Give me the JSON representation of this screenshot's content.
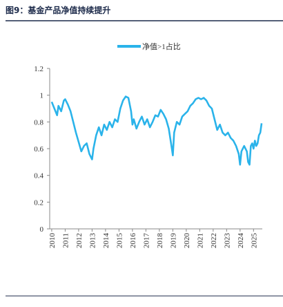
{
  "chart_data": {
    "type": "line",
    "title": "图9：基金产品净值持续提升",
    "x": [
      2010.0,
      2010.2,
      2010.4,
      2010.5,
      2010.7,
      2010.9,
      2011.0,
      2011.2,
      2011.4,
      2011.6,
      2011.8,
      2012.0,
      2012.2,
      2012.4,
      2012.6,
      2012.8,
      2013.0,
      2013.1,
      2013.3,
      2013.5,
      2013.7,
      2013.9,
      2014.1,
      2014.3,
      2014.5,
      2014.7,
      2014.9,
      2015.1,
      2015.3,
      2015.5,
      2015.7,
      2015.9,
      2016.0,
      2016.1,
      2016.3,
      2016.5,
      2016.7,
      2016.9,
      2017.1,
      2017.3,
      2017.5,
      2017.7,
      2017.9,
      2018.1,
      2018.3,
      2018.5,
      2018.7,
      2018.9,
      2019.0,
      2019.1,
      2019.3,
      2019.5,
      2019.7,
      2019.9,
      2020.1,
      2020.3,
      2020.5,
      2020.7,
      2020.9,
      2021.1,
      2021.3,
      2021.5,
      2021.7,
      2021.9,
      2022.1,
      2022.3,
      2022.5,
      2022.7,
      2022.9,
      2023.1,
      2023.3,
      2023.5,
      2023.7,
      2023.9,
      2024.0,
      2024.1,
      2024.3,
      2024.5,
      2024.6,
      2024.7,
      2024.8,
      2024.9,
      2025.0,
      2025.1,
      2025.2,
      2025.3,
      2025.4,
      2025.5,
      2025.6
    ],
    "series": [
      {
        "name": "净值>1占比",
        "color": "#2ab3ea",
        "values": [
          0.95,
          0.9,
          0.85,
          0.92,
          0.88,
          0.96,
          0.97,
          0.93,
          0.88,
          0.8,
          0.72,
          0.65,
          0.58,
          0.62,
          0.64,
          0.56,
          0.52,
          0.6,
          0.7,
          0.76,
          0.7,
          0.78,
          0.74,
          0.8,
          0.76,
          0.82,
          0.8,
          0.9,
          0.96,
          0.99,
          0.98,
          0.88,
          0.78,
          0.82,
          0.75,
          0.8,
          0.84,
          0.78,
          0.82,
          0.76,
          0.8,
          0.85,
          0.84,
          0.89,
          0.86,
          0.82,
          0.75,
          0.62,
          0.55,
          0.72,
          0.8,
          0.78,
          0.84,
          0.86,
          0.88,
          0.92,
          0.94,
          0.97,
          0.98,
          0.97,
          0.98,
          0.96,
          0.92,
          0.9,
          0.82,
          0.74,
          0.78,
          0.72,
          0.7,
          0.72,
          0.68,
          0.66,
          0.62,
          0.56,
          0.48,
          0.58,
          0.62,
          0.58,
          0.5,
          0.48,
          0.62,
          0.64,
          0.6,
          0.66,
          0.62,
          0.64,
          0.7,
          0.72,
          0.79
        ]
      }
    ],
    "xlim": [
      2009.85,
      2025.65
    ],
    "xticks": [
      2010,
      2011,
      2012,
      2013,
      2014,
      2015,
      2016,
      2017,
      2018,
      2019,
      2020,
      2021,
      2022,
      2023,
      2024,
      2025
    ],
    "ylim": [
      0,
      1.2
    ],
    "yticks": [
      0,
      0.2,
      0.4,
      0.6,
      0.8,
      1,
      1.2
    ],
    "legend": "top"
  }
}
